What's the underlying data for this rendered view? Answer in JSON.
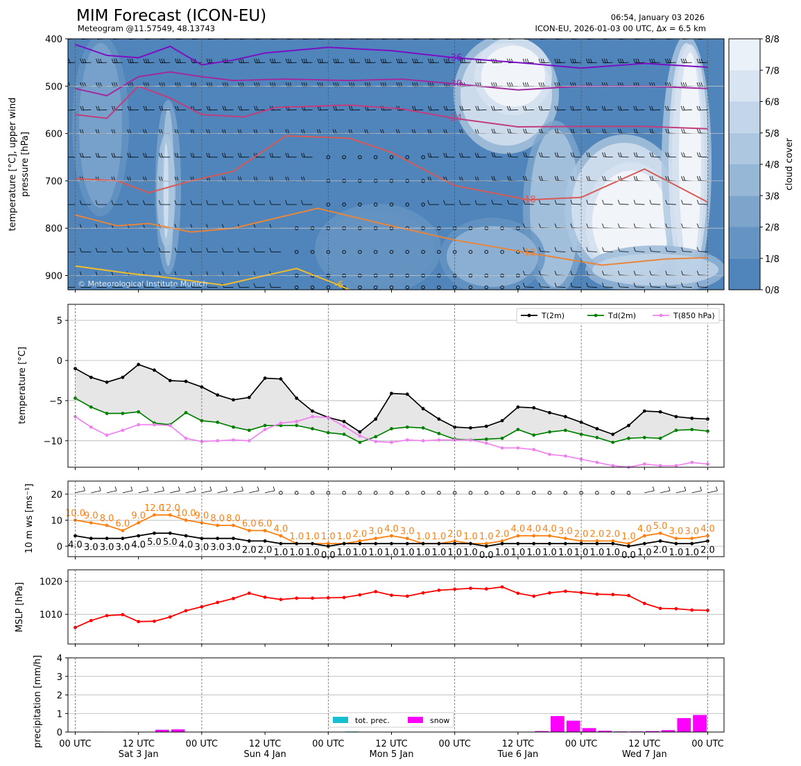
{
  "header": {
    "title": "MIM Forecast (ICON-EU)",
    "subtitle": "Meteogram @11.57549, 48.13743",
    "timestamp": "06:54, January 03 2026",
    "run_info": "ICON-EU, 2026-01-03 00 UTC, Δx = 6.5 km",
    "copyright": "© Meteorological Institute Munich"
  },
  "time_axis": {
    "ticks": [
      "00 UTC",
      "12 UTC",
      "00 UTC",
      "12 UTC",
      "00 UTC",
      "12 UTC",
      "00 UTC",
      "12 UTC",
      "00 UTC",
      "12 UTC",
      "00 UTC"
    ],
    "day_labels": [
      "Sat 3 Jan",
      "Sun 4 Jan",
      "Mon 5 Jan",
      "Tue 6 Jan",
      "Wed 7 Jan"
    ],
    "range_hours": [
      0,
      120
    ],
    "step_hours": 3
  },
  "chart_data": [
    {
      "type": "heatmap",
      "ylabel_line1": "temperature [$^\\circ$C], upper wind",
      "ylabel_line2": "pressure [hPa]",
      "ylim": [
        930,
        400
      ],
      "yticks": [
        "400",
        "500",
        "600",
        "700",
        "800",
        "900"
      ],
      "colorbar_label": "cloud cover",
      "colorbar_ticks": [
        "0/8",
        "1/8",
        "2/8",
        "3/8",
        "4/8",
        "5/8",
        "6/8",
        "7/8",
        "8/8"
      ],
      "colors": [
        "#4f85ba",
        "#6593c2",
        "#7da5cc",
        "#96b7d6",
        "#adc7e0",
        "#c3d6e9",
        "#d8e4f1",
        "#ebf1f8",
        "#f7fafd"
      ],
      "isotherms": [
        {
          "label": "-36",
          "color": "#7b0fc4",
          "points": [
            [
              0,
              412
            ],
            [
              6,
              435
            ],
            [
              12,
              440
            ],
            [
              18,
              416
            ],
            [
              24,
              455
            ],
            [
              30,
              445
            ],
            [
              36,
              430
            ],
            [
              48,
              418
            ],
            [
              60,
              425
            ],
            [
              72,
              440
            ],
            [
              84,
              450
            ],
            [
              96,
              462
            ],
            [
              108,
              452
            ],
            [
              120,
              460
            ]
          ]
        },
        {
          "label": "-30",
          "color": "#a12aa0",
          "points": [
            [
              0,
              505
            ],
            [
              6,
              520
            ],
            [
              12,
              480
            ],
            [
              18,
              470
            ],
            [
              24,
              480
            ],
            [
              30,
              488
            ],
            [
              40,
              485
            ],
            [
              52,
              488
            ],
            [
              62,
              485
            ],
            [
              72,
              495
            ],
            [
              84,
              508
            ],
            [
              96,
              500
            ],
            [
              108,
              500
            ],
            [
              120,
              505
            ]
          ]
        },
        {
          "label": "-24",
          "color": "#c13d7d",
          "points": [
            [
              0,
              560
            ],
            [
              6,
              568
            ],
            [
              12,
              500
            ],
            [
              18,
              525
            ],
            [
              24,
              560
            ],
            [
              32,
              565
            ],
            [
              38,
              545
            ],
            [
              52,
              540
            ],
            [
              62,
              548
            ],
            [
              72,
              568
            ],
            [
              84,
              586
            ],
            [
              96,
              585
            ],
            [
              108,
              585
            ],
            [
              120,
              590
            ]
          ]
        },
        {
          "label": "-18",
          "color": "#d75a56",
          "points": [
            [
              0,
              695
            ],
            [
              8,
              700
            ],
            [
              14,
              725
            ],
            [
              22,
              700
            ],
            [
              30,
              680
            ],
            [
              40,
              605
            ],
            [
              52,
              610
            ],
            [
              60,
              640
            ],
            [
              72,
              710
            ],
            [
              86,
              740
            ],
            [
              96,
              735
            ],
            [
              108,
              675
            ],
            [
              120,
              745
            ]
          ]
        },
        {
          "label": "-12",
          "color": "#e8853a",
          "points": [
            [
              0,
              772
            ],
            [
              8,
              795
            ],
            [
              14,
              790
            ],
            [
              22,
              808
            ],
            [
              30,
              800
            ],
            [
              46,
              758
            ],
            [
              58,
              790
            ],
            [
              72,
              825
            ],
            [
              86,
              852
            ],
            [
              100,
              878
            ],
            [
              112,
              865
            ],
            [
              120,
              862
            ]
          ]
        },
        {
          "label": "-6",
          "color": "#f0bb2d",
          "points": [
            [
              0,
              880
            ],
            [
              10,
              895
            ],
            [
              18,
              905
            ],
            [
              28,
              920
            ],
            [
              34,
              905
            ],
            [
              42,
              885
            ],
            [
              50,
              920
            ],
            [
              56,
              950
            ],
            [
              64,
              950
            ]
          ]
        }
      ]
    },
    {
      "type": "line",
      "ylabel": "temperature [$^\\circ$C]",
      "ylim": [
        -13.3,
        7
      ],
      "yticks": [
        "5",
        "0",
        "−5",
        "−10"
      ],
      "legend_position": "top-right",
      "series": [
        {
          "name": "T(2m)",
          "color": "#000000",
          "values": [
            -1,
            -2.1,
            -2.7,
            -2.1,
            -0.5,
            -1.2,
            -2.5,
            -2.6,
            -3.3,
            -4.3,
            -4.9,
            -4.6,
            -2.2,
            -2.3,
            -4.7,
            -6.3,
            -7.1,
            -7.6,
            -8.9,
            -7.3,
            -4.1,
            -4.2,
            -6,
            -7.3,
            -8.3,
            -8.4,
            -8.2,
            -7.5,
            -5.8,
            -5.9,
            -6.5,
            -7,
            -7.7,
            -8.5,
            -9.2,
            -8.1,
            -6.3,
            -6.4,
            -7,
            -7.2,
            -7.3
          ]
        },
        {
          "name": "Td(2m)",
          "color": "#008000",
          "values": [
            -4.7,
            -5.8,
            -6.6,
            -6.6,
            -6.4,
            -7.8,
            -8,
            -6.5,
            -7.5,
            -7.7,
            -8.3,
            -8.7,
            -8.1,
            -8.1,
            -8.1,
            -8.5,
            -9,
            -9.2,
            -10.2,
            -9.5,
            -8.5,
            -8.3,
            -8.4,
            -9.1,
            -9.8,
            -9.9,
            -9.8,
            -9.7,
            -8.6,
            -9.3,
            -8.9,
            -8.7,
            -9.2,
            -9.6,
            -10.2,
            -9.7,
            -9.6,
            -9.7,
            -8.7,
            -8.6,
            -8.8
          ]
        },
        {
          "name": "T(850 hPa)",
          "color": "#ee82ee",
          "values": [
            -7,
            -8.3,
            -9.3,
            -8.7,
            -8,
            -8,
            -8.1,
            -9.7,
            -10.1,
            -10,
            -9.9,
            -10,
            -8.6,
            -7.8,
            -7.6,
            -7,
            -7.1,
            -8.2,
            -9.4,
            -10.1,
            -10.2,
            -9.9,
            -10,
            -9.9,
            -9.9,
            -9.9,
            -10.3,
            -10.9,
            -10.9,
            -11.1,
            -11.7,
            -11.9,
            -12.3,
            -12.7,
            -13.1,
            -13.3,
            -12.9,
            -13.1,
            -13.1,
            -12.7,
            -12.9
          ]
        }
      ]
    },
    {
      "type": "line",
      "ylabel": "10 m ws [ms$^{-1}$]",
      "ylim": [
        -4,
        25
      ],
      "yticks": [
        "20",
        "10",
        "0"
      ],
      "series": [
        {
          "name": "gust",
          "color": "#ff7f0e",
          "values": [
            10,
            9,
            8,
            6,
            9,
            12,
            12,
            10,
            9,
            8,
            8,
            6,
            6,
            4,
            1,
            1,
            1,
            1,
            2,
            3,
            4,
            3,
            1,
            1,
            2,
            1,
            1,
            2,
            4,
            4,
            4,
            3,
            2,
            2,
            2,
            1,
            4,
            5,
            3,
            3,
            4
          ]
        },
        {
          "name": "mean",
          "color": "#000000",
          "values": [
            4,
            3,
            3,
            3,
            4,
            5,
            5,
            4,
            3,
            3,
            3,
            2,
            2,
            1,
            1,
            1,
            0,
            1,
            1,
            1,
            1,
            1,
            1,
            1,
            1,
            1,
            0,
            1,
            1,
            1,
            1,
            1,
            1,
            1,
            1,
            0,
            1,
            2,
            1,
            1,
            2
          ]
        }
      ],
      "gust_labels": [
        "10.0",
        "9.0",
        "8.0",
        "6.0",
        "9.0",
        "12.0",
        "12.0",
        "10.0",
        "9.0",
        "8.0",
        "8.0",
        "6.0",
        "6.0",
        "4.0",
        "1.0",
        "1.0",
        "1.0",
        "1.0",
        "2.0",
        "3.0",
        "4.0",
        "3.0",
        "1.0",
        "1.0",
        "2.0",
        "1.0",
        "1.0",
        "2.0",
        "4.0",
        "4.0",
        "4.0",
        "3.0",
        "2.0",
        "2.0",
        "2.0",
        "1.0",
        "4.0",
        "5.0",
        "3.0",
        "3.0",
        "4.0"
      ],
      "mean_labels": [
        "4.0",
        "3.0",
        "3.0",
        "3.0",
        "4.0",
        "5.0",
        "5.0",
        "4.0",
        "3.0",
        "3.0",
        "3.0",
        "2.0",
        "2.0",
        "1.0",
        "1.0",
        "1.0",
        "0.0",
        "1.0",
        "1.0",
        "1.0",
        "1.0",
        "1.0",
        "1.0",
        "1.0",
        "1.0",
        "1.0",
        "0.0",
        "1.0",
        "1.0",
        "1.0",
        "1.0",
        "1.0",
        "1.0",
        "1.0",
        "1.0",
        "0.0",
        "1.0",
        "2.0",
        "1.0",
        "1.0",
        "2.0"
      ]
    },
    {
      "type": "line",
      "ylabel": "MSLP [hPa]",
      "ylim": [
        1001,
        1023.5
      ],
      "yticks": [
        "1020",
        "1010"
      ],
      "series": [
        {
          "name": "MSLP",
          "color": "#ff0000",
          "values": [
            1006,
            1008.1,
            1009.6,
            1009.9,
            1007.8,
            1007.9,
            1009.2,
            1011.1,
            1012.3,
            1013.6,
            1014.8,
            1016.4,
            1015.2,
            1014.5,
            1014.9,
            1014.9,
            1015,
            1015.1,
            1015.9,
            1016.9,
            1015.8,
            1015.5,
            1016.5,
            1017.3,
            1017.6,
            1017.9,
            1017.7,
            1018.3,
            1016.4,
            1015.5,
            1016.5,
            1017,
            1016.6,
            1016.1,
            1016,
            1015.7,
            1013.3,
            1011.8,
            1011.7,
            1011.3,
            1011.2
          ]
        }
      ]
    },
    {
      "type": "bar",
      "ylabel": "precipitation [mm/h]",
      "ylim": [
        0,
        4
      ],
      "yticks": [
        "4",
        "3",
        "2",
        "1",
        "0"
      ],
      "legend_position": "bottom-center",
      "series": [
        {
          "name": "tot. prec.",
          "color": "#17becf",
          "values": [
            0,
            0.02,
            0,
            0.02,
            0,
            0.12,
            0.14,
            0,
            0,
            0,
            0,
            0,
            0,
            0,
            0,
            0,
            0,
            0.03,
            0,
            0,
            0,
            0,
            0,
            0,
            0,
            0,
            0,
            0,
            0,
            0.05,
            0.86,
            0.61,
            0.21,
            0.07,
            0.03,
            0.03,
            0.05,
            0.1,
            0.75,
            0.92
          ]
        },
        {
          "name": "snow",
          "color": "#ff00ff",
          "values": [
            0,
            0.02,
            0,
            0.02,
            0,
            0.12,
            0.14,
            0,
            0,
            0,
            0,
            0,
            0,
            0,
            0,
            0,
            0,
            0,
            0,
            0,
            0,
            0,
            0,
            0,
            0,
            0,
            0,
            0,
            0,
            0.05,
            0.86,
            0.61,
            0.21,
            0.07,
            0.03,
            0.03,
            0.05,
            0.1,
            0.75,
            0.92
          ]
        }
      ]
    }
  ]
}
